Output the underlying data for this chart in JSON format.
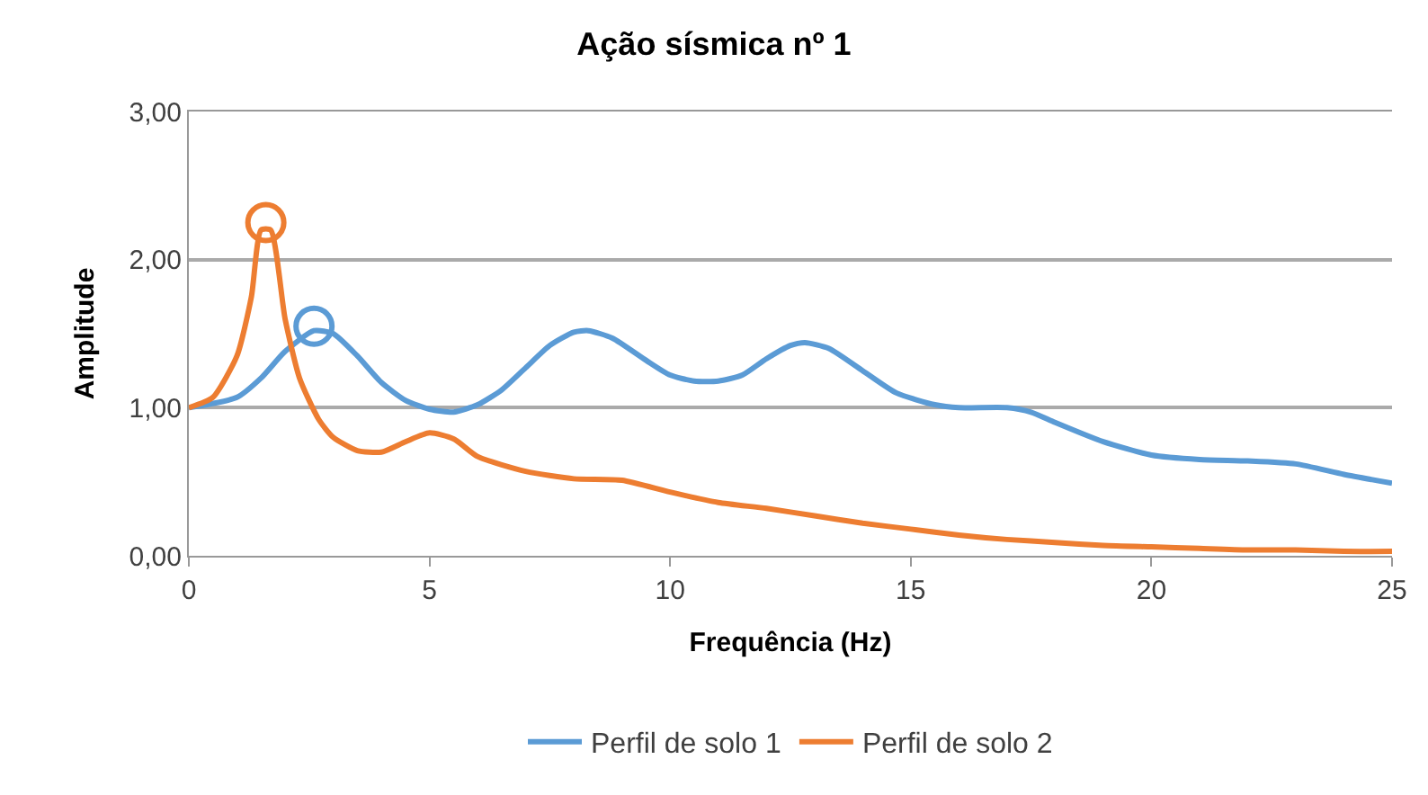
{
  "chart_data": {
    "type": "line",
    "title": "Ação sísmica nº 1",
    "xlabel": "Frequência (Hz)",
    "ylabel": "Amplitude",
    "xlim": [
      0,
      25
    ],
    "xticks": [
      0,
      5,
      10,
      15,
      20,
      25
    ],
    "ylim": [
      0,
      3
    ],
    "yticks": [
      {
        "value": 0,
        "label": "0,00"
      },
      {
        "value": 1,
        "label": "1,00"
      },
      {
        "value": 2,
        "label": "2,00"
      },
      {
        "value": 3,
        "label": "3,00"
      }
    ],
    "grid": "y",
    "legend": "bottom",
    "marker": "none",
    "line_style": "solid",
    "series": [
      {
        "name": "Perfil de solo 1",
        "color": "#5b9bd5",
        "x": [
          0,
          1,
          1.5,
          2,
          2.6,
          3,
          3.5,
          4,
          4.5,
          5,
          5.5,
          6,
          6.5,
          7,
          7.5,
          8,
          8.3,
          8.8,
          9.5,
          10,
          10.5,
          11,
          11.5,
          12,
          12.5,
          12.8,
          13.3,
          14,
          14.7,
          15.5,
          16,
          17,
          17.5,
          18,
          19,
          20,
          21,
          22,
          23,
          24,
          25
        ],
        "values": [
          1.0,
          1.07,
          1.2,
          1.38,
          1.52,
          1.5,
          1.35,
          1.17,
          1.05,
          0.99,
          0.97,
          1.02,
          1.12,
          1.27,
          1.42,
          1.51,
          1.52,
          1.47,
          1.32,
          1.22,
          1.18,
          1.18,
          1.22,
          1.33,
          1.42,
          1.44,
          1.4,
          1.25,
          1.1,
          1.02,
          1.0,
          1.0,
          0.97,
          0.9,
          0.77,
          0.68,
          0.65,
          0.64,
          0.62,
          0.55,
          0.49
        ]
      },
      {
        "name": "Perfil de solo 2",
        "color": "#ed7d31",
        "x": [
          0,
          0.5,
          1,
          1.3,
          1.5,
          1.7,
          2,
          2.3,
          2.7,
          3,
          3.5,
          4,
          4.5,
          5,
          5.5,
          6,
          7,
          8,
          9,
          10,
          11,
          12,
          13,
          14,
          15,
          16,
          17,
          18,
          19,
          20,
          21,
          22,
          23,
          24,
          25
        ],
        "values": [
          1.0,
          1.07,
          1.35,
          1.75,
          2.2,
          2.2,
          1.6,
          1.2,
          0.92,
          0.8,
          0.71,
          0.7,
          0.77,
          0.83,
          0.79,
          0.67,
          0.57,
          0.52,
          0.51,
          0.43,
          0.36,
          0.32,
          0.27,
          0.22,
          0.18,
          0.14,
          0.11,
          0.09,
          0.07,
          0.06,
          0.05,
          0.04,
          0.04,
          0.03,
          0.03
        ]
      },
      {
        "type": "scatter",
        "marker": "circle",
        "color": "#5b9bd5",
        "x": [
          2.6
        ],
        "values": [
          1.55
        ]
      },
      {
        "type": "scatter",
        "marker": "circle",
        "color": "#ed7d31",
        "x": [
          1.6
        ],
        "values": [
          2.25
        ]
      }
    ]
  }
}
